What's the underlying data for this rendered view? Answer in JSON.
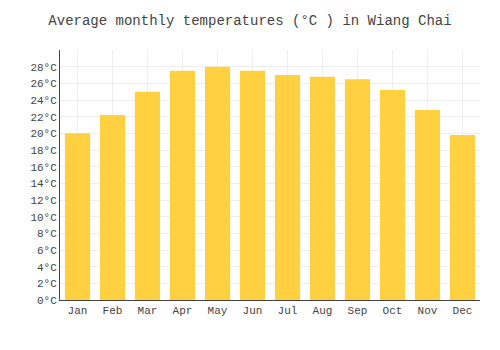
{
  "chart_data": {
    "type": "bar",
    "title": "Average monthly temperatures (°C ) in Wiang Chai",
    "categories": [
      "Jan",
      "Feb",
      "Mar",
      "Apr",
      "May",
      "Jun",
      "Jul",
      "Aug",
      "Sep",
      "Oct",
      "Nov",
      "Dec"
    ],
    "values": [
      20.0,
      22.2,
      25.0,
      27.5,
      28.0,
      27.5,
      27.0,
      26.8,
      26.5,
      25.2,
      22.8,
      19.8
    ],
    "color": "#FFD040",
    "ylim": [
      0,
      30
    ],
    "yticks": [
      {
        "value": 0,
        "label": "0°C"
      },
      {
        "value": 2,
        "label": "2°C"
      },
      {
        "value": 4,
        "label": "4°C"
      },
      {
        "value": 6,
        "label": "6°C"
      },
      {
        "value": 8,
        "label": "8°C"
      },
      {
        "value": 10,
        "label": "10°C"
      },
      {
        "value": 12,
        "label": "12°C"
      },
      {
        "value": 14,
        "label": "14°C"
      },
      {
        "value": 16,
        "label": "16°C"
      },
      {
        "value": 18,
        "label": "18°C"
      },
      {
        "value": 20,
        "label": "20°C"
      },
      {
        "value": 22,
        "label": "22°C"
      },
      {
        "value": 24,
        "label": "24°C"
      },
      {
        "value": 26,
        "label": "26°C"
      },
      {
        "value": 28,
        "label": "28°C"
      }
    ],
    "grid": true
  }
}
